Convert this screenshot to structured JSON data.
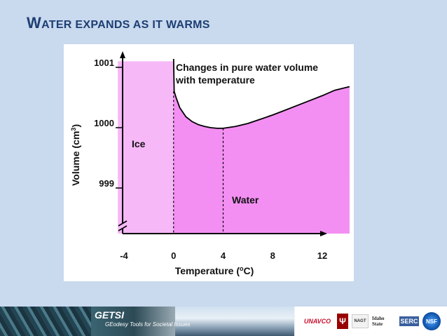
{
  "slide": {
    "title_first_letter": "W",
    "title_rest": "ater expands as it warms"
  },
  "chart_data": {
    "type": "area",
    "title": "Changes in pure water volume with temperature",
    "xlabel": "Temperature (°C)",
    "xlabel_main": "Temperature (",
    "xlabel_sup": "o",
    "xlabel_end": "C)",
    "ylabel": "Volume (cm³)",
    "ylabel_main": "Volume (cm",
    "ylabel_sup": "3",
    "ylabel_end": ")",
    "x_ticks": [
      -4,
      0,
      4,
      8,
      12
    ],
    "x_tick_labels": [
      "-4",
      "0",
      "4",
      "8",
      "12"
    ],
    "y_ticks": [
      999,
      1000,
      1001
    ],
    "y_tick_labels": [
      "999",
      "1000",
      "1001"
    ],
    "xlim": [
      -5.2,
      16
    ],
    "ylim": [
      998.2,
      1001.6
    ],
    "axis_breaks": [
      "y"
    ],
    "grid": false,
    "regions": [
      {
        "label": "Ice",
        "x_range": [
          -4.5,
          0
        ],
        "volume": 1001.1,
        "color": "#f7b8f7"
      },
      {
        "label": "Water",
        "x_range": [
          0,
          14.2
        ],
        "color": "#f38ff3"
      }
    ],
    "series": [
      {
        "color": "#000000",
        "x": [
          0,
          0.05,
          0.2,
          0.5,
          1,
          1.5,
          2,
          2.5,
          3,
          3.5,
          4,
          5,
          6,
          7,
          8,
          9,
          10,
          11,
          12,
          13,
          14.2
        ],
        "y": [
          1001.14,
          1000.6,
          1000.5,
          1000.33,
          1000.18,
          1000.1,
          1000.05,
          1000.02,
          1000.0,
          999.99,
          999.99,
          1000.02,
          1000.07,
          1000.14,
          1000.21,
          1000.29,
          1000.37,
          1000.45,
          1000.53,
          1000.62,
          1000.68
        ]
      }
    ],
    "reference_lines": [
      0,
      4
    ]
  },
  "footer": {
    "getsi": "GETSI",
    "getsi_sub": "GEodesy Tools for Societal Issues",
    "logos": {
      "unavco": "UNAVCO",
      "iu": "Ψ",
      "nagt": "NAGT",
      "idaho": "Idaho State",
      "serc": "SERC",
      "nsf": "NSF"
    }
  }
}
